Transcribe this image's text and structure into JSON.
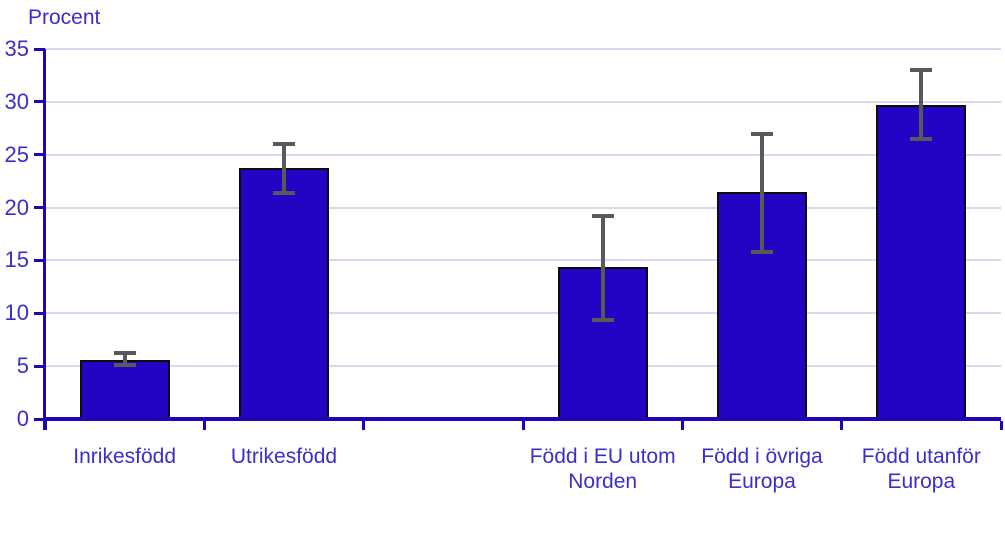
{
  "chart_data": {
    "type": "bar",
    "title": "",
    "ylabel": "Procent",
    "xlabel": "",
    "categories": [
      "Inrikesfödd",
      "Utrikesfödd",
      "Född i EU utom Norden",
      "Född i övriga Europa",
      "Född utanför Europa"
    ],
    "category_lines": [
      [
        "Inrikesfödd"
      ],
      [
        "Utrikesfödd"
      ],
      [
        "Född i EU utom",
        "Norden"
      ],
      [
        "Född i övriga",
        "Europa"
      ],
      [
        "Född utanför",
        "Europa"
      ]
    ],
    "values": [
      5.6,
      23.7,
      14.4,
      21.5,
      29.7
    ],
    "error_low": [
      5.1,
      21.4,
      9.4,
      15.8,
      26.5
    ],
    "error_high": [
      6.2,
      26.0,
      19.2,
      27.0,
      33.0
    ],
    "ylim": [
      0,
      35
    ],
    "ytick_step": 5,
    "grid": true,
    "legend_position": "none",
    "slots": [
      0,
      1,
      3,
      4,
      5
    ],
    "slot_count": 6,
    "colors": {
      "bar_fill": "#2404c4",
      "bar_border": "#0d0d0d",
      "axis": "#2203b5",
      "grid": "#d8d8f0",
      "text": "#3b2ecd",
      "error_bar": "#595959"
    }
  }
}
